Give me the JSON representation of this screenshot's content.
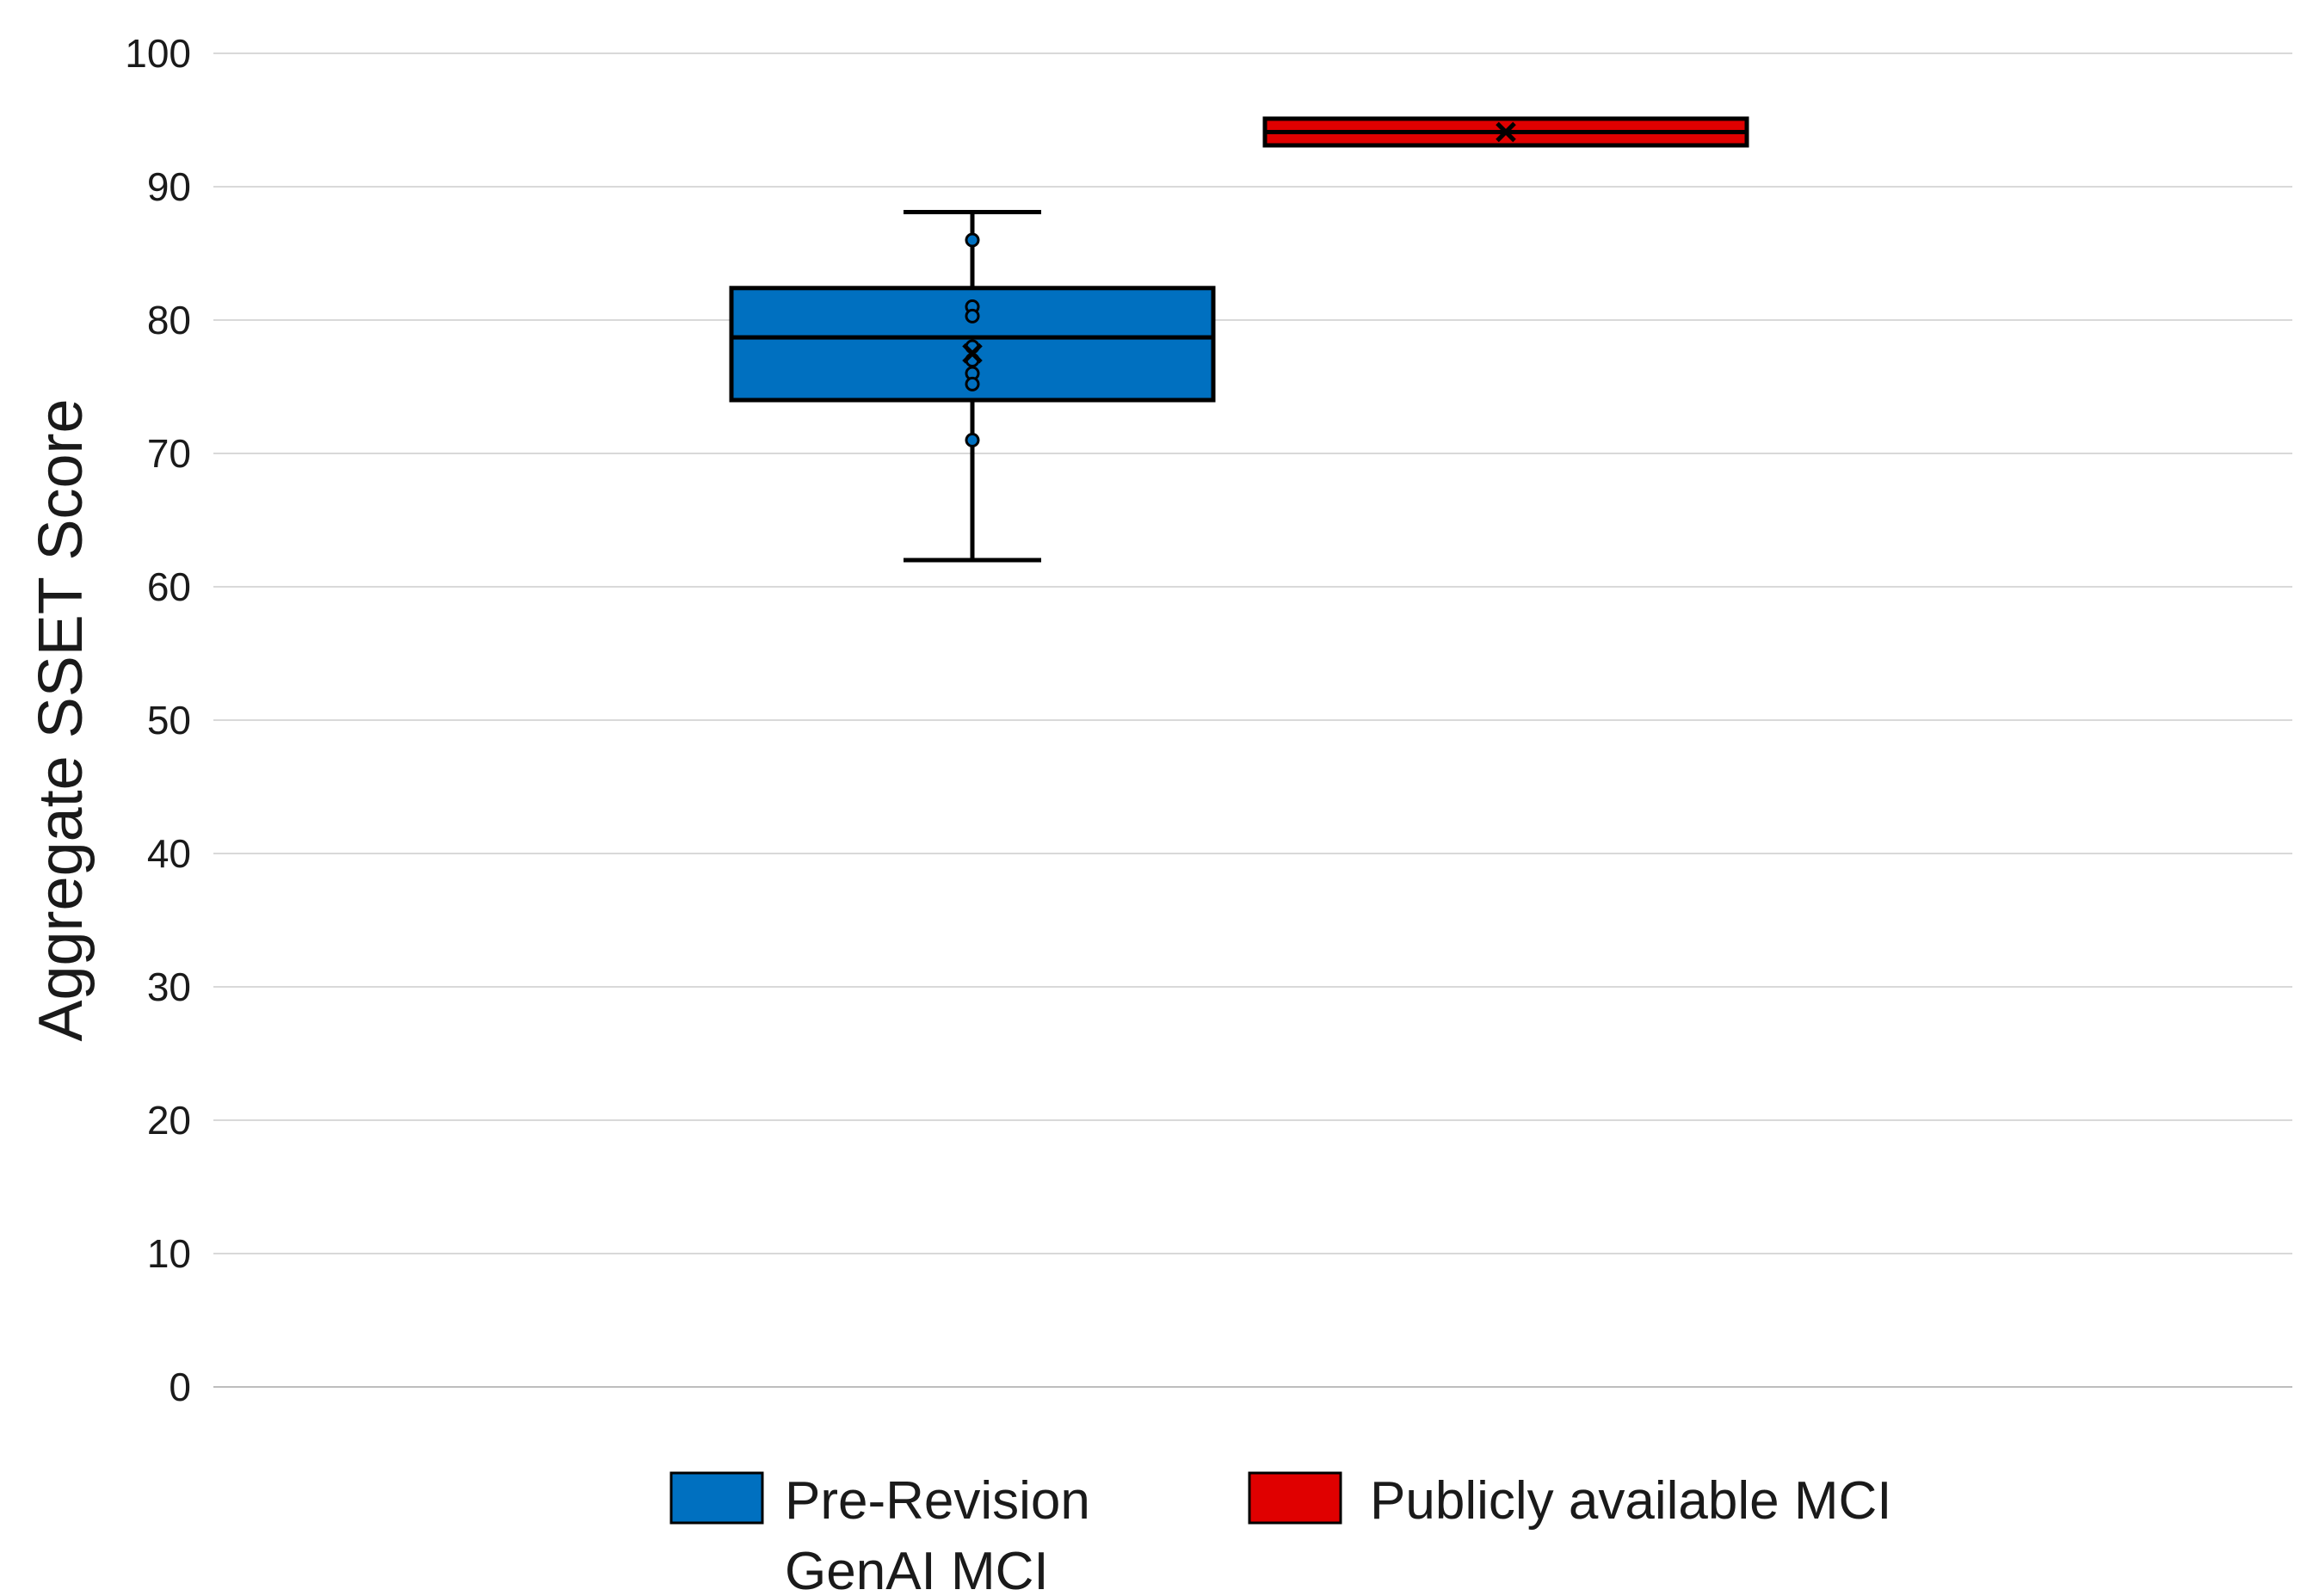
{
  "chart_data": {
    "type": "box",
    "title": "",
    "xlabel": "",
    "ylabel": "Aggregate SSET Score",
    "ylim": [
      0,
      100
    ],
    "yticks": [
      0,
      10,
      20,
      30,
      40,
      50,
      60,
      70,
      80,
      90,
      100
    ],
    "grid": true,
    "legend_position": "bottom",
    "series": [
      {
        "name": "Pre-Revision GenAI MCI",
        "legend_lines": [
          "Pre-Revision",
          "GenAI MCI"
        ],
        "color": "#0070C0",
        "whisker_low": 62,
        "q1": 74,
        "median": 78.7,
        "q3": 82.4,
        "whisker_high": 88.1,
        "mean": 77.5,
        "points": [
          86,
          81,
          80.3,
          78,
          77,
          76,
          75.2,
          71
        ]
      },
      {
        "name": "Publicly available MCI",
        "legend_lines": [
          "Publicly available MCI"
        ],
        "color": "#E00000",
        "whisker_low": 93.1,
        "q1": 93.1,
        "median": 94.1,
        "q3": 95.1,
        "whisker_high": 95.1,
        "mean": 94.1,
        "points": []
      }
    ]
  }
}
